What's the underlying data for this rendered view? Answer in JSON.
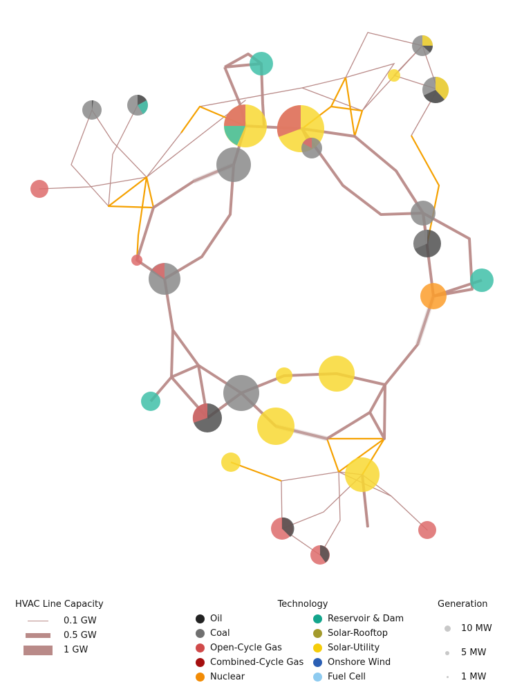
{
  "legends": {
    "hvac": {
      "title": "HVAC Line Capacity",
      "items": [
        {
          "label": "0.1 GW",
          "capacity_gw": 0.1
        },
        {
          "label": "0.5 GW",
          "capacity_gw": 0.5
        },
        {
          "label": "1 GW",
          "capacity_gw": 1
        }
      ]
    },
    "technology": {
      "title": "Technology",
      "col1": [
        {
          "label": "Oil",
          "color": "#222222"
        },
        {
          "label": "Coal",
          "color": "#707070"
        },
        {
          "label": "Open-Cycle Gas",
          "color": "#d04a4a"
        },
        {
          "label": "Combined-Cycle Gas",
          "color": "#a50f0f"
        },
        {
          "label": "Nuclear",
          "color": "#f28c06"
        }
      ],
      "col2": [
        {
          "label": "Reservoir & Dam",
          "color": "#13a58c"
        },
        {
          "label": "Solar-Rooftop",
          "color": "#a39a2c"
        },
        {
          "label": "Solar-Utility",
          "color": "#f5cd0a"
        },
        {
          "label": "Onshore Wind",
          "color": "#2b5fb4"
        },
        {
          "label": "Fuel Cell",
          "color": "#8ecbf0"
        }
      ]
    },
    "generation": {
      "title": "Generation",
      "items": [
        {
          "label": "10 MW",
          "mw": 10
        },
        {
          "label": "5 MW",
          "mw": 5
        },
        {
          "label": "1 MW",
          "mw": 1
        }
      ]
    }
  },
  "colors": {
    "line_ac": "#b98a88",
    "line_dc": "#f5a100",
    "coal": "#8a8a8a",
    "oil": "#505050",
    "gas": "#dd6b6b",
    "reservoir": "#3fbfa8",
    "solar": "#f8d832",
    "nuclear": "#fb9e2c"
  }
}
